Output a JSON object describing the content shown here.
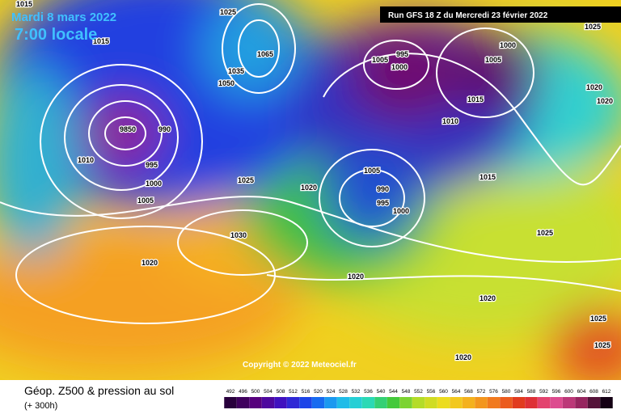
{
  "header": {
    "date": "Mardi 8 mars 2022",
    "time": "7:00 locale",
    "run": "Run GFS 18 Z du Mercredi 23 février 2022"
  },
  "copyright": "Copyright © 2022 Meteociel.fr",
  "footer": {
    "title": "Géop. Z500 & pression au sol",
    "lead": "(+ 300h)"
  },
  "scale": {
    "ticks": [
      492,
      496,
      500,
      504,
      508,
      512,
      516,
      520,
      524,
      528,
      532,
      536,
      540,
      544,
      548,
      552,
      556,
      560,
      564,
      568,
      572,
      576,
      580,
      584,
      588,
      592,
      596,
      600,
      604,
      608,
      612
    ]
  },
  "isobar_labels": [
    "1015",
    "1025",
    "1065",
    "1035",
    "1050",
    "9850",
    "990",
    "995",
    "1000",
    "1005",
    "1010",
    "1025",
    "1030",
    "1020",
    "1020",
    "1020",
    "1005",
    "995",
    "1000",
    "1005",
    "1000",
    "1025",
    "1015",
    "1010",
    "1005",
    "990",
    "995",
    "1000",
    "1015",
    "1025",
    "1020",
    "1020",
    "1025",
    "1020",
    "1025",
    "1020",
    "1015"
  ]
}
